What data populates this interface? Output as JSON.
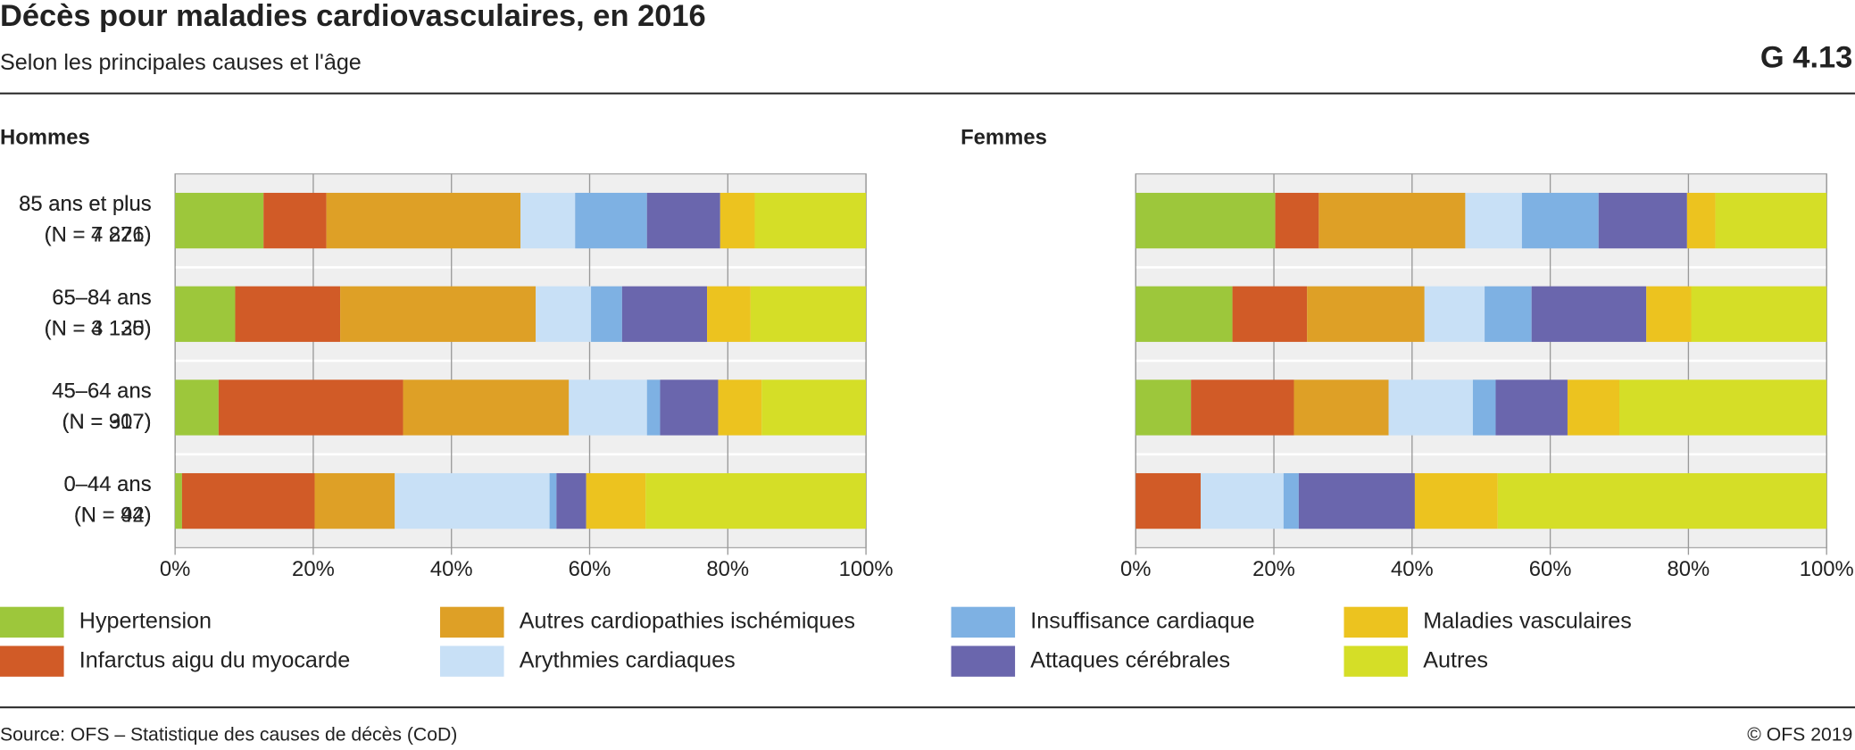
{
  "header": {
    "title": "Décès pour maladies cardiovasculaires, en 2016",
    "subtitle": "Selon les principales causes et l'âge",
    "code": "G 4.13"
  },
  "footer": {
    "source": "Source: OFS – Statistique des causes de décès (CoD)",
    "copyright": "© OFS 2019"
  },
  "chart_data": [
    {
      "type": "hbar-stacked",
      "title": "Hommes",
      "categories": [
        [
          "85 ans et plus",
          "(N = 4 221)"
        ],
        [
          "65–84 ans",
          "(N = 4 125)"
        ],
        [
          "45–64 ans",
          "(N = 917)"
        ],
        [
          "0–44 ans",
          "(N = 94)"
        ]
      ],
      "xlim": [
        0,
        100
      ],
      "xticks": [
        {
          "value": 0,
          "label": "0%"
        },
        {
          "value": 20,
          "label": "20%"
        },
        {
          "value": 40,
          "label": "40%"
        },
        {
          "value": 60,
          "label": "60%"
        },
        {
          "value": 80,
          "label": "80%"
        },
        {
          "value": 100,
          "label": "100%"
        }
      ],
      "grid": true,
      "series": [
        {
          "name": "Hypertension",
          "color": "#9dc73b",
          "values": [
            12.8,
            8.7,
            6.3,
            1.0
          ]
        },
        {
          "name": "Infarctus aigu du myocarde",
          "color": "#d15b27",
          "values": [
            9.1,
            15.2,
            26.7,
            19.2
          ]
        },
        {
          "name": "Autres cardiopathies ischémiques",
          "color": "#dea026",
          "values": [
            28.1,
            28.3,
            24.0,
            11.6
          ]
        },
        {
          "name": "Arythmies cardiaques",
          "color": "#c8e0f6",
          "values": [
            7.9,
            8.0,
            11.3,
            22.4
          ]
        },
        {
          "name": "Insuffisance cardiaque",
          "color": "#7eb1e3",
          "values": [
            10.4,
            4.5,
            1.9,
            1.0
          ]
        },
        {
          "name": "Attaques cérébrales",
          "color": "#6a66ad",
          "values": [
            10.6,
            12.3,
            8.4,
            4.3
          ]
        },
        {
          "name": "Maladies vasculaires",
          "color": "#ecc31f",
          "values": [
            5.0,
            6.3,
            6.3,
            8.6
          ]
        },
        {
          "name": "Autres",
          "color": "#d5de27",
          "values": [
            16.1,
            16.7,
            15.1,
            31.9
          ]
        }
      ]
    },
    {
      "type": "hbar-stacked",
      "title": "Femmes",
      "categories": [
        [
          "85 ans et plus",
          "(N = 7 876)"
        ],
        [
          "65–84 ans",
          "(N = 3 130)"
        ],
        [
          "45–64 ans",
          "(N = 307)"
        ],
        [
          "0–44 ans",
          "(N = 42)"
        ]
      ],
      "xlim": [
        0,
        100
      ],
      "xticks": [
        {
          "value": 0,
          "label": "0%"
        },
        {
          "value": 20,
          "label": "20%"
        },
        {
          "value": 40,
          "label": "40%"
        },
        {
          "value": 60,
          "label": "60%"
        },
        {
          "value": 80,
          "label": "80%"
        },
        {
          "value": 100,
          "label": "100%"
        }
      ],
      "grid": true,
      "series": [
        {
          "values": [
            20.2,
            14.0,
            8.0,
            0
          ]
        },
        {
          "values": [
            6.3,
            10.8,
            14.9,
            9.4
          ]
        },
        {
          "values": [
            21.2,
            17.0,
            13.7,
            0
          ]
        },
        {
          "values": [
            8.2,
            8.7,
            12.2,
            12.0
          ]
        },
        {
          "values": [
            11.1,
            6.8,
            3.3,
            2.2
          ]
        },
        {
          "values": [
            12.8,
            16.6,
            10.4,
            16.8
          ]
        },
        {
          "values": [
            4.1,
            6.5,
            7.5,
            12.0
          ]
        },
        {
          "values": [
            16.1,
            19.6,
            30.0,
            47.6
          ]
        }
      ]
    }
  ]
}
